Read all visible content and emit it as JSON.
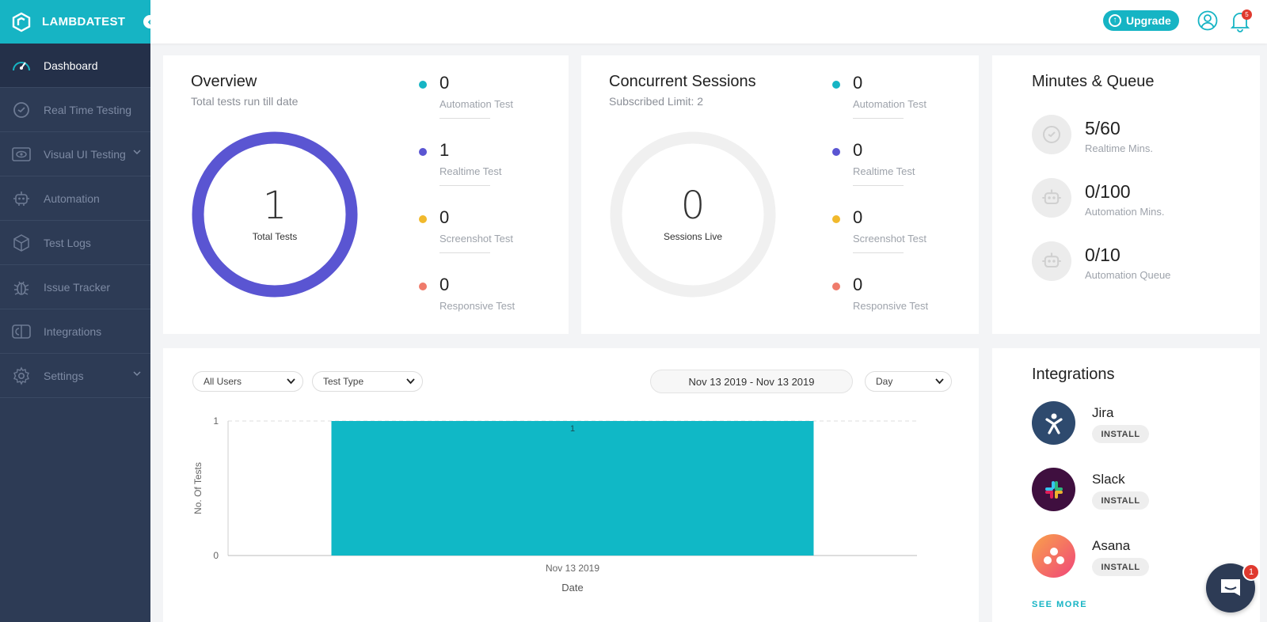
{
  "brand": {
    "name": "LAMBDATEST",
    "accent": "#16b4c4",
    "sidebar_bg": "#2d3b55"
  },
  "sidebar": {
    "items": [
      {
        "label": "Dashboard",
        "icon": "speedometer-icon",
        "active": true
      },
      {
        "label": "Real Time Testing",
        "icon": "clock-icon"
      },
      {
        "label": "Visual UI Testing",
        "icon": "eye-icon",
        "expandable": true
      },
      {
        "label": "Automation",
        "icon": "robot-icon"
      },
      {
        "label": "Test Logs",
        "icon": "cube-icon"
      },
      {
        "label": "Issue Tracker",
        "icon": "bug-icon"
      },
      {
        "label": "Integrations",
        "icon": "plug-icon"
      },
      {
        "label": "Settings",
        "icon": "gear-icon",
        "expandable": true
      }
    ]
  },
  "header": {
    "upgrade_label": "Upgrade",
    "notifications_count": "5"
  },
  "overview": {
    "title": "Overview",
    "subtitle": "Total tests run till date",
    "total": "1",
    "total_label": "Total Tests",
    "ring_color": "#5a55d2",
    "stats": [
      {
        "value": "0",
        "label": "Automation Test",
        "color": "#16b4c4"
      },
      {
        "value": "1",
        "label": "Realtime Test",
        "color": "#5a55d2"
      },
      {
        "value": "0",
        "label": "Screenshot Test",
        "color": "#f1b92c"
      },
      {
        "value": "0",
        "label": "Responsive Test",
        "color": "#ef7b6b"
      }
    ]
  },
  "concurrent": {
    "title": "Concurrent Sessions",
    "subtitle": "Subscribed Limit: 2",
    "live": "0",
    "live_label": "Sessions Live",
    "ring_color": "#f0f0f0",
    "stats": [
      {
        "value": "0",
        "label": "Automation Test",
        "color": "#16b4c4"
      },
      {
        "value": "0",
        "label": "Realtime Test",
        "color": "#5a55d2"
      },
      {
        "value": "0",
        "label": "Screenshot Test",
        "color": "#f1b92c"
      },
      {
        "value": "0",
        "label": "Responsive Test",
        "color": "#ef7b6b"
      }
    ]
  },
  "minutes": {
    "title": "Minutes & Queue",
    "items": [
      {
        "value": "5/60",
        "label": "Realtime Mins.",
        "icon": "realtime-icon"
      },
      {
        "value": "0/100",
        "label": "Automation Mins.",
        "icon": "robot-icon"
      },
      {
        "value": "0/10",
        "label": "Automation Queue",
        "icon": "robot-icon"
      }
    ]
  },
  "filters": {
    "users": "All Users",
    "test_type": "Test Type",
    "date_range": "Nov 13 2019 - Nov 13 2019",
    "granularity": "Day"
  },
  "chart_data": {
    "type": "bar",
    "categories": [
      "Nov 13 2019"
    ],
    "values": [
      1
    ],
    "data_labels": [
      "1"
    ],
    "xlabel": "Date",
    "ylabel": "No. Of Tests",
    "ylim": [
      0,
      1
    ],
    "yticks": [
      "0",
      "1"
    ],
    "bar_color": "#10b8c6",
    "grid": true
  },
  "integrations": {
    "title": "Integrations",
    "install_label": "INSTALL",
    "items": [
      {
        "name": "Jira",
        "icon": "jira-icon",
        "bg": "#2e4a6e"
      },
      {
        "name": "Slack",
        "icon": "slack-icon",
        "bg": "#3f0f3f"
      },
      {
        "name": "Asana",
        "icon": "asana-icon",
        "bg": "#f36a6a"
      }
    ],
    "see_more": "SEE MORE"
  },
  "chat": {
    "badge": "1"
  }
}
